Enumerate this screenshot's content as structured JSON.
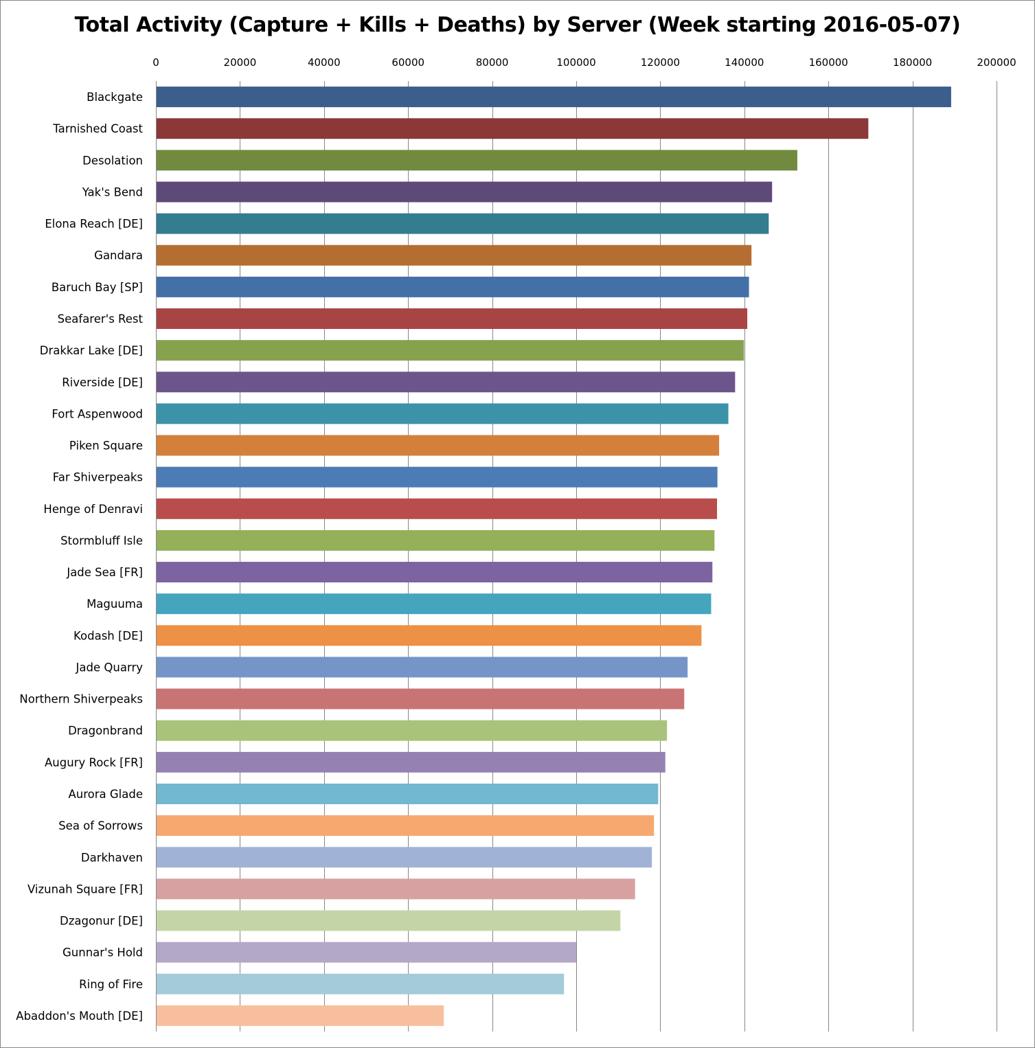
{
  "chart_data": {
    "type": "bar",
    "orientation": "horizontal",
    "title": "Total Activity (Capture + Kills + Deaths) by Server (Week starting 2016-05-07)",
    "xlim": [
      0,
      200000
    ],
    "x_ticks": [
      0,
      20000,
      40000,
      60000,
      80000,
      100000,
      120000,
      140000,
      160000,
      180000,
      200000
    ],
    "x_axis_position": "top",
    "grid": "vertical",
    "categories": [
      "Blackgate",
      "Tarnished Coast",
      "Desolation",
      "Yak's Bend",
      "Elona Reach [DE]",
      "Gandara",
      "Baruch Bay [SP]",
      "Seafarer's Rest",
      "Drakkar Lake [DE]",
      "Riverside [DE]",
      "Fort Aspenwood",
      "Piken Square",
      "Far Shiverpeaks",
      "Henge of Denravi",
      "Stormbluff Isle",
      "Jade Sea [FR]",
      "Maguuma",
      "Kodash [DE]",
      "Jade Quarry",
      "Northern Shiverpeaks",
      "Dragonbrand",
      "Augury Rock [FR]",
      "Aurora Glade",
      "Sea of Sorrows",
      "Darkhaven",
      "Vizunah Square [FR]",
      "Dzagonur [DE]",
      "Gunnar's Hold",
      "Ring of Fire",
      "Abaddon's Mouth [DE]"
    ],
    "values": [
      189200,
      169500,
      152600,
      146600,
      145800,
      141700,
      141100,
      140700,
      139900,
      137800,
      136200,
      134000,
      133600,
      133500,
      132900,
      132400,
      132100,
      129800,
      126500,
      125700,
      121600,
      121200,
      119500,
      118500,
      118000,
      114000,
      110500,
      100000,
      97100,
      68500
    ],
    "colors": [
      "#3b5e8c",
      "#8c3838",
      "#728a3f",
      "#5e4a78",
      "#337d8f",
      "#b56e31",
      "#4470a8",
      "#a84544",
      "#87a24e",
      "#6c558a",
      "#3c92a8",
      "#d47f3a",
      "#4c7bb5",
      "#b84d4b",
      "#94b058",
      "#7d63a0",
      "#45a5bf",
      "#ec9146",
      "#7595c8",
      "#c97474",
      "#a9c47a",
      "#9581b2",
      "#72b8ce",
      "#f6a86e",
      "#a0b3d7",
      "#d8a1a1",
      "#c3d5a6",
      "#b3a8c7",
      "#a3cbda",
      "#f8bf9f"
    ]
  }
}
